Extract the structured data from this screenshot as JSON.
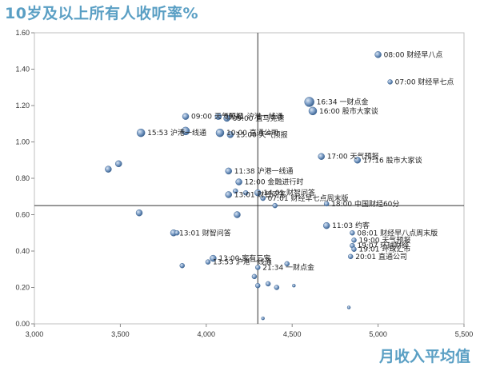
{
  "chart_data": {
    "type": "scatter",
    "title": "10岁及以上所有人收听率%",
    "xlabel": "月收入平均值",
    "ylabel": "",
    "xlim": [
      3000,
      5500
    ],
    "ylim": [
      0,
      1.6
    ],
    "x_ticks": [
      "3,000",
      "3,500",
      "4,000",
      "4,500",
      "5,000",
      "5,500"
    ],
    "y_ticks": [
      "0.00",
      "0.20",
      "0.40",
      "0.60",
      "0.80",
      "1.00",
      "1.20",
      "1.40",
      "1.60"
    ],
    "reference_lines": {
      "x": 4300,
      "y": 0.65
    },
    "grid": false,
    "legend": "none",
    "bubble_color": "#5b82b0",
    "points": [
      {
        "x": 5000,
        "y": 1.48,
        "r": 4,
        "label": "08:00 财经早八点"
      },
      {
        "x": 5070,
        "y": 1.33,
        "r": 3,
        "label": "07:00 财经早七点"
      },
      {
        "x": 4600,
        "y": 1.22,
        "r": 6,
        "label": "16:34 一财点金"
      },
      {
        "x": 4620,
        "y": 1.17,
        "r": 5,
        "label": "16:00 股市大家谈"
      },
      {
        "x": 4670,
        "y": 0.92,
        "r": 4,
        "label": "17:00 天气预报"
      },
      {
        "x": 4880,
        "y": 0.9,
        "r": 4,
        "label": "17:16 股市大家谈"
      },
      {
        "x": 3880,
        "y": 1.14,
        "r": 4,
        "label": "09:00 天气预报"
      },
      {
        "x": 4070,
        "y": 1.14,
        "r": 4,
        "label": "09:41 沪港一线通"
      },
      {
        "x": 4120,
        "y": 1.13,
        "r": 4,
        "label": "09:00 直马竞速"
      },
      {
        "x": 3620,
        "y": 1.05,
        "r": 5,
        "label": "15:53 沪港一线通"
      },
      {
        "x": 3880,
        "y": 1.06,
        "r": 5,
        "label": ""
      },
      {
        "x": 4080,
        "y": 1.05,
        "r": 5,
        "label": "10:00 直通公司"
      },
      {
        "x": 4140,
        "y": 1.04,
        "r": 4,
        "label": "15:00 天气预报"
      },
      {
        "x": 3430,
        "y": 0.85,
        "r": 4,
        "label": ""
      },
      {
        "x": 3490,
        "y": 0.88,
        "r": 4,
        "label": ""
      },
      {
        "x": 4130,
        "y": 0.84,
        "r": 4,
        "label": "11:38 沪港一线通"
      },
      {
        "x": 4190,
        "y": 0.78,
        "r": 4,
        "label": "12:00 金融进行时"
      },
      {
        "x": 4130,
        "y": 0.71,
        "r": 4,
        "label": "13:01 财智问答"
      },
      {
        "x": 4170,
        "y": 0.73,
        "r": 3,
        "label": ""
      },
      {
        "x": 4300,
        "y": 0.72,
        "r": 4,
        "label": "14:01 财智问答"
      },
      {
        "x": 4230,
        "y": 0.72,
        "r": 3,
        "label": ""
      },
      {
        "x": 4330,
        "y": 0.69,
        "r": 3,
        "label": "07:01 财经早七点周末版"
      },
      {
        "x": 4400,
        "y": 0.65,
        "r": 3,
        "label": ""
      },
      {
        "x": 4700,
        "y": 0.66,
        "r": 3,
        "label": "18:00 中国财经60分"
      },
      {
        "x": 4180,
        "y": 0.6,
        "r": 4,
        "label": ""
      },
      {
        "x": 3610,
        "y": 0.61,
        "r": 4,
        "label": ""
      },
      {
        "x": 3810,
        "y": 0.5,
        "r": 4,
        "label": "13:01 财智问答"
      },
      {
        "x": 3830,
        "y": 0.5,
        "r": 3,
        "label": ""
      },
      {
        "x": 4700,
        "y": 0.54,
        "r": 4,
        "label": "11:03 约客"
      },
      {
        "x": 4850,
        "y": 0.5,
        "r": 3,
        "label": "08:01 财经早八点周末版"
      },
      {
        "x": 4860,
        "y": 0.46,
        "r": 3,
        "label": "19:00 天气预报"
      },
      {
        "x": 4850,
        "y": 0.43,
        "r": 3,
        "label": "19:07 环球财经"
      },
      {
        "x": 4860,
        "y": 0.41,
        "r": 3,
        "label": "19:01 环球汇市"
      },
      {
        "x": 4840,
        "y": 0.37,
        "r": 3,
        "label": "20:01 直通公司"
      },
      {
        "x": 4040,
        "y": 0.36,
        "r": 4,
        "label": "13:00 家有三宝"
      },
      {
        "x": 4010,
        "y": 0.34,
        "r": 3,
        "label": "13:53 沪港一线通"
      },
      {
        "x": 3860,
        "y": 0.32,
        "r": 3,
        "label": ""
      },
      {
        "x": 4300,
        "y": 0.31,
        "r": 3,
        "label": "21:34 一财点金"
      },
      {
        "x": 4470,
        "y": 0.33,
        "r": 3,
        "label": ""
      },
      {
        "x": 4280,
        "y": 0.26,
        "r": 3,
        "label": ""
      },
      {
        "x": 4300,
        "y": 0.21,
        "r": 3,
        "label": ""
      },
      {
        "x": 4360,
        "y": 0.22,
        "r": 3,
        "label": ""
      },
      {
        "x": 4410,
        "y": 0.2,
        "r": 3,
        "label": ""
      },
      {
        "x": 4510,
        "y": 0.21,
        "r": 2,
        "label": ""
      },
      {
        "x": 4830,
        "y": 0.09,
        "r": 2,
        "label": ""
      },
      {
        "x": 4330,
        "y": 0.03,
        "r": 2,
        "label": ""
      }
    ]
  }
}
